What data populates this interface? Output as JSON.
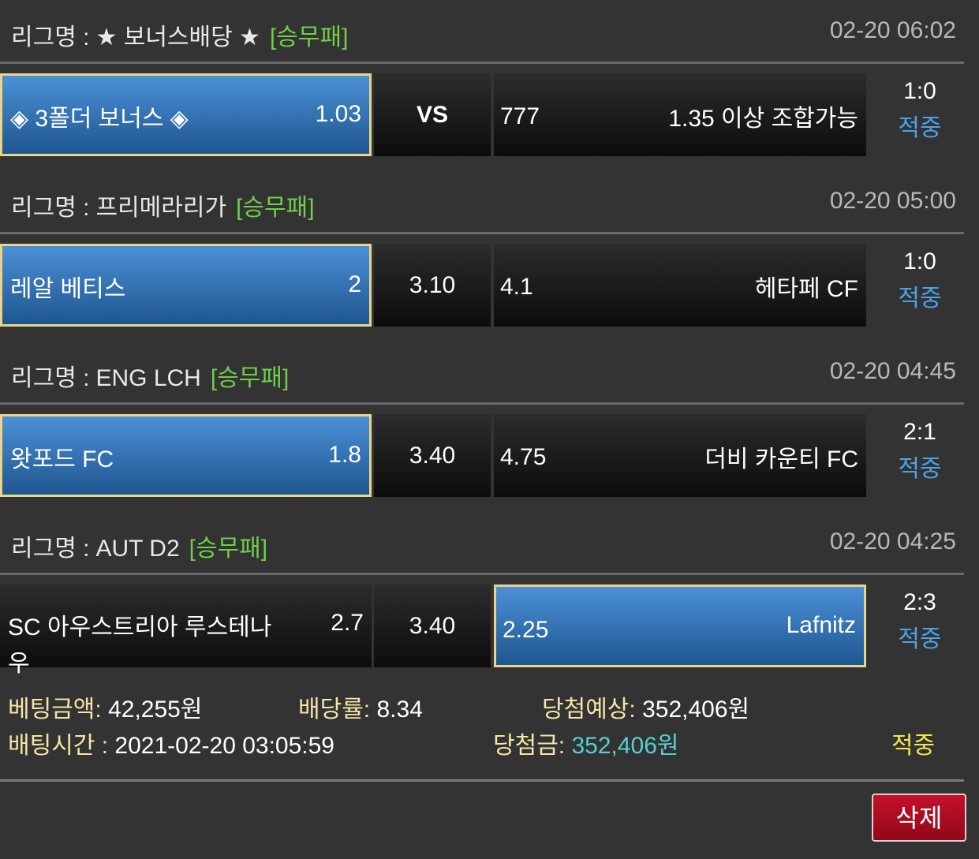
{
  "league_label": "리그명 :",
  "matches": [
    {
      "league": "★ 보너스배당 ★",
      "type": "[승무패]",
      "time": "02-20 06:02",
      "home": "◈ 3폴더 보너스 ◈",
      "home_odd": "1.03",
      "draw": "VS",
      "away_odd": "777",
      "away": "1.35 이상 조합가능",
      "score": "1:0",
      "result": "적중",
      "selected": "home"
    },
    {
      "league": "프리메라리가",
      "type": "[승무패]",
      "time": "02-20 05:00",
      "home": "레알 베티스",
      "home_odd": "2",
      "draw": "3.10",
      "away_odd": "4.1",
      "away": "헤타페 CF",
      "score": "1:0",
      "result": "적중",
      "selected": "home"
    },
    {
      "league": "ENG LCH",
      "type": "[승무패]",
      "time": "02-20 04:45",
      "home": "왓포드 FC",
      "home_odd": "1.8",
      "draw": "3.40",
      "away_odd": "4.75",
      "away": "더비 카운티 FC",
      "score": "2:1",
      "result": "적중",
      "selected": "home"
    },
    {
      "league": "AUT D2",
      "type": "[승무패]",
      "time": "02-20 04:25",
      "home": "SC 아우스트리아 루스테나우",
      "home_odd": "2.7",
      "draw": "3.40",
      "away_odd": "2.25",
      "away": "Lafnitz",
      "score": "2:3",
      "result": "적중",
      "selected": "away"
    }
  ],
  "summary": {
    "bet_amount_label": "베팅금액:",
    "bet_amount": "42,255원",
    "odds_label": "배당률:",
    "odds": "8.34",
    "expected_label": "당첨예상:",
    "expected": "352,406원",
    "bet_time_label": "배팅시간 :",
    "bet_time": "2021-02-20 03:05:59",
    "win_label": "당첨금:",
    "win": "352,406원",
    "status": "적중"
  },
  "delete_label": "삭제",
  "colors": {
    "selected": "#2f73b8",
    "selected_border": "#e9d48a",
    "league_type": "#6fcf4a",
    "hit": "#4aa3e8",
    "win_amount": "#55d0d0",
    "status": "#f2e84a",
    "delete": "#b00d22"
  }
}
